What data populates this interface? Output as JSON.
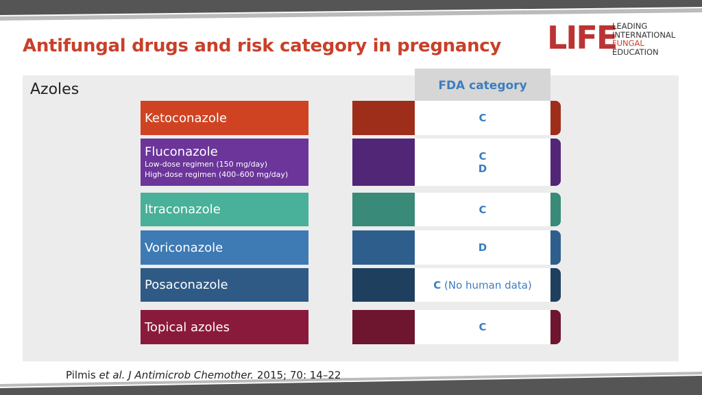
{
  "header": {
    "title": "Antifungal drugs and risk category in pregnancy"
  },
  "logo": {
    "mark": "LIFE",
    "lines": [
      "LEADING",
      "INTERNATIONAL",
      "FUNGAL",
      "EDUCATION"
    ]
  },
  "section": "Azoles",
  "column_header": "FDA category",
  "rows": [
    {
      "drug": "Ketoconazole",
      "categories": [
        "C"
      ]
    },
    {
      "drug": "Fluconazole",
      "details": [
        "Low-dose regimen (150 mg/day)",
        "High-dose regimen (400–600 mg/day)"
      ],
      "categories": [
        "C",
        "D"
      ]
    },
    {
      "drug": "Itraconazole",
      "categories": [
        "C"
      ]
    },
    {
      "drug": "Voriconazole",
      "categories": [
        "D"
      ]
    },
    {
      "drug": "Posaconazole",
      "categories": [
        "C"
      ],
      "note": "(No human data)"
    },
    {
      "drug": "Topical azoles",
      "categories": [
        "C"
      ]
    }
  ],
  "citation": {
    "author": "Pilmis",
    "etal": "et al.",
    "journal": "J Antimicrob Chemother.",
    "rest": "2015; 70: 14–22"
  }
}
